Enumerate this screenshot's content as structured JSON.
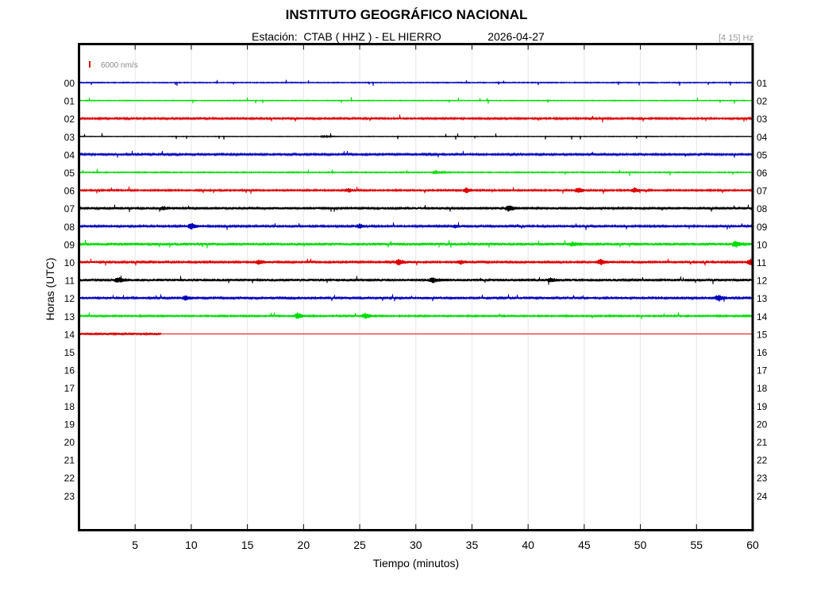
{
  "header": {
    "title": "INSTITUTO GEOGRÁFICO NACIONAL",
    "station_label": "Estación:",
    "station": "CTAB ( HHZ ) - EL HIERRO",
    "date": "2026-04-27",
    "filter": "[4 15] Hz"
  },
  "chart_data": {
    "type": "line",
    "title": "INSTITUTO GEOGRÁFICO NACIONAL",
    "xlabel": "Tiempo (minutos)",
    "ylabel": "Horas (UTC)",
    "xlim": [
      0,
      60
    ],
    "x_ticks": [
      5,
      10,
      15,
      20,
      25,
      30,
      35,
      40,
      45,
      50,
      55,
      60
    ],
    "y_ticks_left": [
      "00",
      "01",
      "02",
      "03",
      "04",
      "05",
      "06",
      "07",
      "08",
      "09",
      "10",
      "11",
      "12",
      "13",
      "14",
      "15",
      "16",
      "17",
      "18",
      "19",
      "20",
      "21",
      "22",
      "23"
    ],
    "y_ticks_right": [
      "01",
      "02",
      "03",
      "04",
      "05",
      "06",
      "07",
      "08",
      "09",
      "10",
      "11",
      "12",
      "13",
      "14",
      "15",
      "16",
      "17",
      "18",
      "19",
      "20",
      "21",
      "22",
      "23",
      "24"
    ],
    "grid": "vertical",
    "scale_legend": {
      "label": "6000 nm/s",
      "color": "#dd0000"
    },
    "color_cycle": [
      "#0000bb",
      "#00dd00",
      "#dd0000",
      "#000000"
    ],
    "series": [
      {
        "hour": 0,
        "end_minute": 60,
        "noise": 0.6,
        "events": []
      },
      {
        "hour": 1,
        "end_minute": 60,
        "noise": 0.5,
        "events": []
      },
      {
        "hour": 2,
        "end_minute": 60,
        "noise": 1.1,
        "events": []
      },
      {
        "hour": 3,
        "end_minute": 60,
        "noise": 0.4,
        "events": [
          [
            21.8,
            1.5
          ]
        ]
      },
      {
        "hour": 4,
        "end_minute": 60,
        "noise": 1.2,
        "events": []
      },
      {
        "hour": 5,
        "end_minute": 60,
        "noise": 0.7,
        "events": [
          [
            31.8,
            2.5
          ]
        ]
      },
      {
        "hour": 6,
        "end_minute": 60,
        "noise": 1.0,
        "events": [
          [
            24,
            2.5
          ],
          [
            34.5,
            3.5
          ],
          [
            44.5,
            3.5
          ],
          [
            49.5,
            3
          ]
        ]
      },
      {
        "hour": 7,
        "end_minute": 60,
        "noise": 1.5,
        "events": [
          [
            38.3,
            4
          ],
          [
            7.5,
            2
          ]
        ]
      },
      {
        "hour": 8,
        "end_minute": 60,
        "noise": 1.2,
        "events": [
          [
            10,
            4
          ],
          [
            25,
            2.5
          ],
          [
            33.5,
            2
          ]
        ]
      },
      {
        "hour": 9,
        "end_minute": 60,
        "noise": 1.8,
        "events": [
          [
            44,
            2
          ],
          [
            58.5,
            3.5
          ]
        ]
      },
      {
        "hour": 10,
        "end_minute": 60,
        "noise": 1.2,
        "events": [
          [
            28.5,
            4
          ],
          [
            16,
            3
          ],
          [
            46.5,
            3.5
          ],
          [
            59.8,
            3.5
          ],
          [
            34,
            2.5
          ]
        ]
      },
      {
        "hour": 11,
        "end_minute": 60,
        "noise": 1.7,
        "events": [
          [
            3.5,
            3
          ],
          [
            31.5,
            3
          ],
          [
            42,
            2
          ]
        ]
      },
      {
        "hour": 12,
        "end_minute": 60,
        "noise": 1.3,
        "events": [
          [
            9.5,
            3
          ],
          [
            57,
            4
          ]
        ]
      },
      {
        "hour": 13,
        "end_minute": 60,
        "noise": 1.0,
        "events": [
          [
            19.5,
            4
          ],
          [
            25.5,
            3.5
          ]
        ]
      },
      {
        "hour": 14,
        "end_minute": 7.3,
        "noise": 1.6,
        "events": []
      }
    ]
  }
}
